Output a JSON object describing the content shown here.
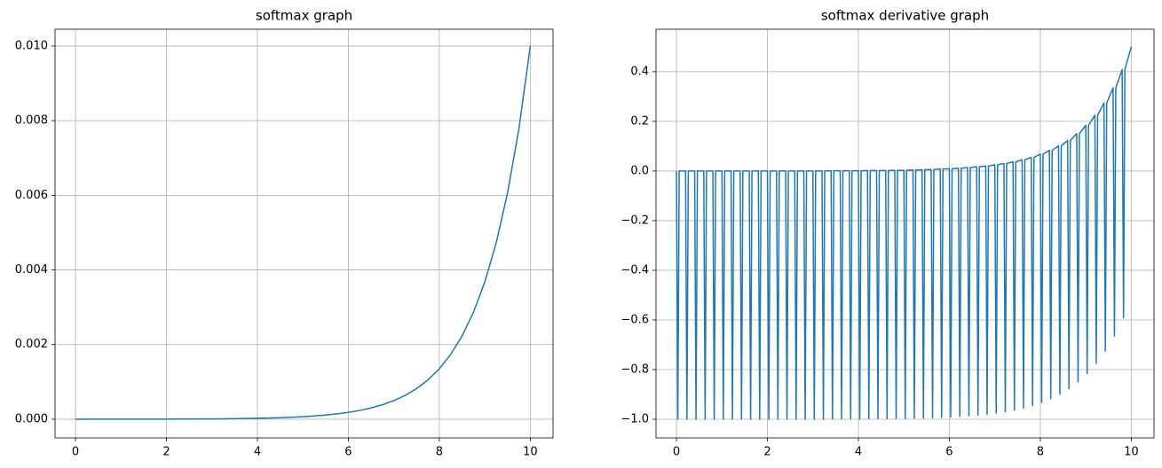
{
  "chart_data": [
    {
      "type": "line",
      "title": "softmax graph",
      "color": "#1f77b4",
      "grid": true,
      "x": [
        0,
        0.25,
        0.5,
        0.75,
        1,
        1.25,
        1.5,
        1.75,
        2,
        2.25,
        2.5,
        2.75,
        3,
        3.25,
        3.5,
        3.75,
        4,
        4.25,
        4.5,
        4.75,
        5,
        5.25,
        5.5,
        5.75,
        6,
        6.25,
        6.5,
        6.75,
        7,
        7.25,
        7.5,
        7.75,
        8,
        8.25,
        8.5,
        8.75,
        9,
        9.25,
        9.5,
        9.75,
        10
      ],
      "values": [
        0,
        1e-06,
        1e-06,
        1e-06,
        1e-06,
        2e-06,
        2e-06,
        3e-06,
        3e-06,
        4e-06,
        6e-06,
        7e-06,
        9e-06,
        1.2e-05,
        1.5e-05,
        1.9e-05,
        2.5e-05,
        3.2e-05,
        4.1e-05,
        5.3e-05,
        6.7e-05,
        8.7e-05,
        0.000111,
        0.000143,
        0.000183,
        0.000235,
        0.000302,
        0.000388,
        0.000498,
        0.000639,
        0.000821,
        0.001054,
        0.001353,
        0.001738,
        0.002231,
        0.002865,
        0.003679,
        0.004724,
        0.006065,
        0.007788,
        0.01
      ],
      "xlim": [
        -0.45,
        10.5
      ],
      "ylim": [
        -0.0005,
        0.01045
      ],
      "xticks": [
        0,
        2,
        4,
        6,
        8,
        10
      ],
      "yticks": [
        {
          "value": 0,
          "label": "0.000"
        },
        {
          "value": 0.002,
          "label": "0.002"
        },
        {
          "value": 0.004,
          "label": "0.004"
        },
        {
          "value": 0.006,
          "label": "0.006"
        },
        {
          "value": 0.008,
          "label": "0.008"
        },
        {
          "value": 0.01,
          "label": "0.010"
        }
      ]
    },
    {
      "type": "line",
      "title": "softmax derivative graph",
      "color": "#1f77b4",
      "grid": true,
      "x": [
        0,
        0.03,
        0.06,
        0.2,
        0.23,
        0.26,
        0.4,
        0.43,
        0.46,
        0.6,
        0.63,
        0.66,
        0.8,
        0.83,
        0.86,
        1,
        1.03,
        1.06,
        1.2,
        1.23,
        1.26,
        1.4,
        1.43,
        1.46,
        1.6,
        1.63,
        1.66,
        1.8,
        1.83,
        1.86,
        2,
        2.03,
        2.06,
        2.2,
        2.23,
        2.26,
        2.4,
        2.43,
        2.46,
        2.6,
        2.63,
        2.66,
        2.8,
        2.83,
        2.86,
        3,
        3.03,
        3.06,
        3.2,
        3.23,
        3.26,
        3.4,
        3.43,
        3.46,
        3.6,
        3.63,
        3.66,
        3.8,
        3.83,
        3.86,
        4,
        4.03,
        4.06,
        4.2,
        4.23,
        4.26,
        4.4,
        4.43,
        4.46,
        4.6,
        4.63,
        4.66,
        4.8,
        4.83,
        4.86,
        5,
        5.03,
        5.06,
        5.2,
        5.23,
        5.26,
        5.4,
        5.43,
        5.46,
        5.6,
        5.63,
        5.66,
        5.8,
        5.83,
        5.86,
        6,
        6.03,
        6.06,
        6.2,
        6.23,
        6.26,
        6.4,
        6.43,
        6.46,
        6.6,
        6.63,
        6.66,
        6.8,
        6.83,
        6.86,
        7,
        7.03,
        7.06,
        7.2,
        7.23,
        7.26,
        7.4,
        7.43,
        7.46,
        7.6,
        7.63,
        7.66,
        7.8,
        7.83,
        7.86,
        8,
        8.03,
        8.06,
        8.2,
        8.23,
        8.26,
        8.4,
        8.43,
        8.46,
        8.6,
        8.63,
        8.66,
        8.8,
        8.83,
        8.86,
        9,
        9.03,
        9.06,
        9.2,
        9.23,
        9.26,
        9.4,
        9.43,
        9.46,
        9.6,
        9.63,
        9.66,
        9.8,
        9.83,
        9.86,
        10
      ],
      "values": [
        0,
        -1,
        0,
        0,
        -1,
        0,
        0,
        -1,
        0,
        0,
        -1,
        0,
        0,
        -1,
        0,
        0,
        -1,
        0,
        0,
        -1,
        0,
        0,
        -1,
        0,
        0,
        -1,
        0,
        0,
        -1,
        0,
        0,
        -1,
        0,
        0,
        -1,
        0,
        0,
        -1,
        0,
        0,
        -1,
        0,
        0,
        -1,
        0,
        0,
        -1,
        0,
        0,
        -1,
        0,
        0.001,
        -0.999,
        0.001,
        0.001,
        -0.999,
        0.001,
        0.001,
        -0.999,
        0.001,
        0.001,
        -0.999,
        0.001,
        0.002,
        -0.998,
        0.002,
        0.002,
        -0.998,
        0.002,
        0.002,
        -0.998,
        0.002,
        0.003,
        -0.997,
        0.003,
        0.003,
        -0.997,
        0.003,
        0.004,
        -0.996,
        0.004,
        0.005,
        -0.995,
        0.005,
        0.006,
        -0.994,
        0.006,
        0.008,
        -0.992,
        0.008,
        0.009,
        -0.991,
        0.009,
        0.011,
        -0.989,
        0.011,
        0.014,
        -0.986,
        0.014,
        0.017,
        -0.983,
        0.017,
        0.02,
        -0.98,
        0.02,
        0.025,
        -0.975,
        0.025,
        0.03,
        -0.97,
        0.03,
        0.037,
        -0.963,
        0.037,
        0.045,
        -0.955,
        0.045,
        0.055,
        -0.945,
        0.055,
        0.068,
        -0.932,
        0.068,
        0.083,
        -0.917,
        0.083,
        0.101,
        -0.899,
        0.101,
        0.123,
        -0.877,
        0.123,
        0.151,
        -0.849,
        0.151,
        0.184,
        -0.816,
        0.184,
        0.225,
        -0.775,
        0.225,
        0.274,
        -0.726,
        0.274,
        0.335,
        -0.665,
        0.335,
        0.409,
        -0.591,
        0.409,
        0.5
      ],
      "xlim": [
        -0.45,
        10.5
      ],
      "ylim": [
        -1.075,
        0.571
      ],
      "xticks": [
        0,
        2,
        4,
        6,
        8,
        10
      ],
      "yticks": [
        {
          "value": -1,
          "label": "−1.0"
        },
        {
          "value": -0.8,
          "label": "−0.8"
        },
        {
          "value": -0.6,
          "label": "−0.6"
        },
        {
          "value": -0.4,
          "label": "−0.4"
        },
        {
          "value": -0.2,
          "label": "−0.2"
        },
        {
          "value": 0,
          "label": "0.0"
        },
        {
          "value": 0.2,
          "label": "0.2"
        },
        {
          "value": 0.4,
          "label": "0.4"
        }
      ]
    }
  ]
}
